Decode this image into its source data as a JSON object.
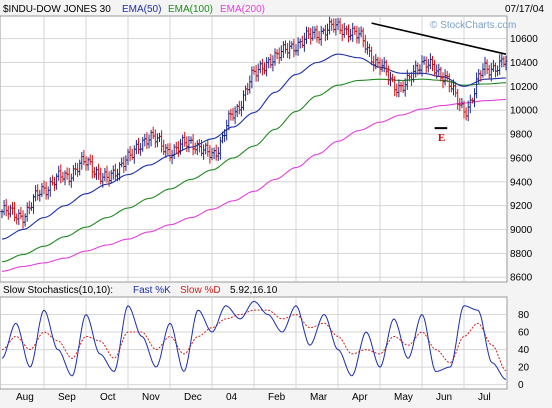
{
  "header": {
    "symbol": "$INDU-DOW JONES 30",
    "date": "07/17/04",
    "watermark": "© StockCharts.com"
  },
  "chart_data": [
    {
      "type": "line",
      "panel": "price",
      "legend": [
        {
          "label": "EMA(50)",
          "color": "#1c2fa8"
        },
        {
          "label": "EMA(100)",
          "color": "#1f8a1f"
        },
        {
          "label": "EMA(200)",
          "color": "#e040e0"
        }
      ],
      "x_labels": [
        "Aug",
        "Sep",
        "Oct",
        "Nov",
        "Dec",
        "04",
        "Feb",
        "Mar",
        "Apr",
        "May",
        "Jun",
        "Jul"
      ],
      "y_ticks": [
        8600,
        8800,
        9000,
        9200,
        9400,
        9600,
        9800,
        10000,
        10200,
        10400,
        10600
      ],
      "ylim": [
        8560,
        10790
      ],
      "grid": true,
      "price_months": [
        7.0,
        7.5,
        8.0,
        8.5,
        9.0,
        9.5,
        10.0,
        10.5,
        11.0,
        11.5,
        12.0,
        12.5,
        13.0,
        13.5,
        14.0,
        14.5,
        15.0,
        15.5,
        16.0,
        16.5,
        17.0,
        17.5,
        18.0,
        18.5,
        19.0
      ],
      "price_close": [
        9150,
        9120,
        9350,
        9450,
        9560,
        9420,
        9600,
        9780,
        9660,
        9730,
        9620,
        9950,
        10300,
        10450,
        10550,
        10650,
        10700,
        10620,
        10360,
        10180,
        10400,
        10300,
        10000,
        10340,
        10400
      ],
      "ema50": [
        8920,
        9000,
        9100,
        9200,
        9300,
        9380,
        9460,
        9540,
        9620,
        9690,
        9760,
        9860,
        9980,
        10150,
        10300,
        10400,
        10470,
        10440,
        10360,
        10310,
        10310,
        10280,
        10200,
        10260,
        10270
      ],
      "ema100": [
        8730,
        8790,
        8860,
        8940,
        9020,
        9100,
        9180,
        9260,
        9340,
        9420,
        9500,
        9600,
        9700,
        9840,
        9990,
        10120,
        10210,
        10250,
        10260,
        10250,
        10260,
        10250,
        10210,
        10220,
        10230
      ],
      "ema200": [
        8650,
        8690,
        8720,
        8760,
        8820,
        8870,
        8920,
        8980,
        9040,
        9100,
        9170,
        9240,
        9320,
        9420,
        9520,
        9630,
        9740,
        9830,
        9900,
        9960,
        10010,
        10040,
        10060,
        10080,
        10090
      ],
      "annotations": [
        {
          "type": "trendline",
          "label": "",
          "points": [
            [
              15.8,
              10730
            ],
            [
              19.0,
              10470
            ]
          ]
        },
        {
          "type": "support",
          "label": "",
          "points": [
            [
              17.3,
              9850
            ],
            [
              17.6,
              9850
            ]
          ]
        },
        {
          "type": "text",
          "label": "E",
          "x": 17.45,
          "y": 9740
        }
      ]
    },
    {
      "type": "line",
      "panel": "stochastics",
      "title": "Slow Stochastics(10,10):",
      "legend": [
        {
          "label": "Fast %K",
          "color": "#1c2fa8"
        },
        {
          "label": "Slow %D",
          "color": "#cc2222"
        }
      ],
      "readout": "5.92,16.10",
      "y_ticks": [
        0,
        20,
        40,
        60,
        80
      ],
      "ylim": [
        -5,
        100
      ],
      "months": [
        7.0,
        7.33,
        7.67,
        8.0,
        8.33,
        8.67,
        9.0,
        9.33,
        9.67,
        10.0,
        10.33,
        10.67,
        11.0,
        11.33,
        11.67,
        12.0,
        12.33,
        12.67,
        13.0,
        13.33,
        13.67,
        14.0,
        14.33,
        14.67,
        15.0,
        15.33,
        15.67,
        16.0,
        16.33,
        16.67,
        17.0,
        17.33,
        17.67,
        18.0,
        18.33,
        18.67,
        19.0
      ],
      "fast_k": [
        30,
        70,
        20,
        85,
        40,
        10,
        80,
        35,
        15,
        90,
        55,
        20,
        70,
        15,
        85,
        60,
        90,
        75,
        95,
        80,
        60,
        90,
        45,
        80,
        40,
        10,
        60,
        20,
        75,
        30,
        80,
        15,
        20,
        90,
        85,
        25,
        6
      ],
      "slow_d": [
        40,
        55,
        40,
        60,
        50,
        30,
        55,
        50,
        30,
        60,
        60,
        40,
        55,
        35,
        55,
        65,
        75,
        80,
        85,
        85,
        75,
        80,
        65,
        70,
        55,
        35,
        40,
        35,
        55,
        45,
        60,
        40,
        25,
        55,
        70,
        45,
        16
      ]
    }
  ]
}
